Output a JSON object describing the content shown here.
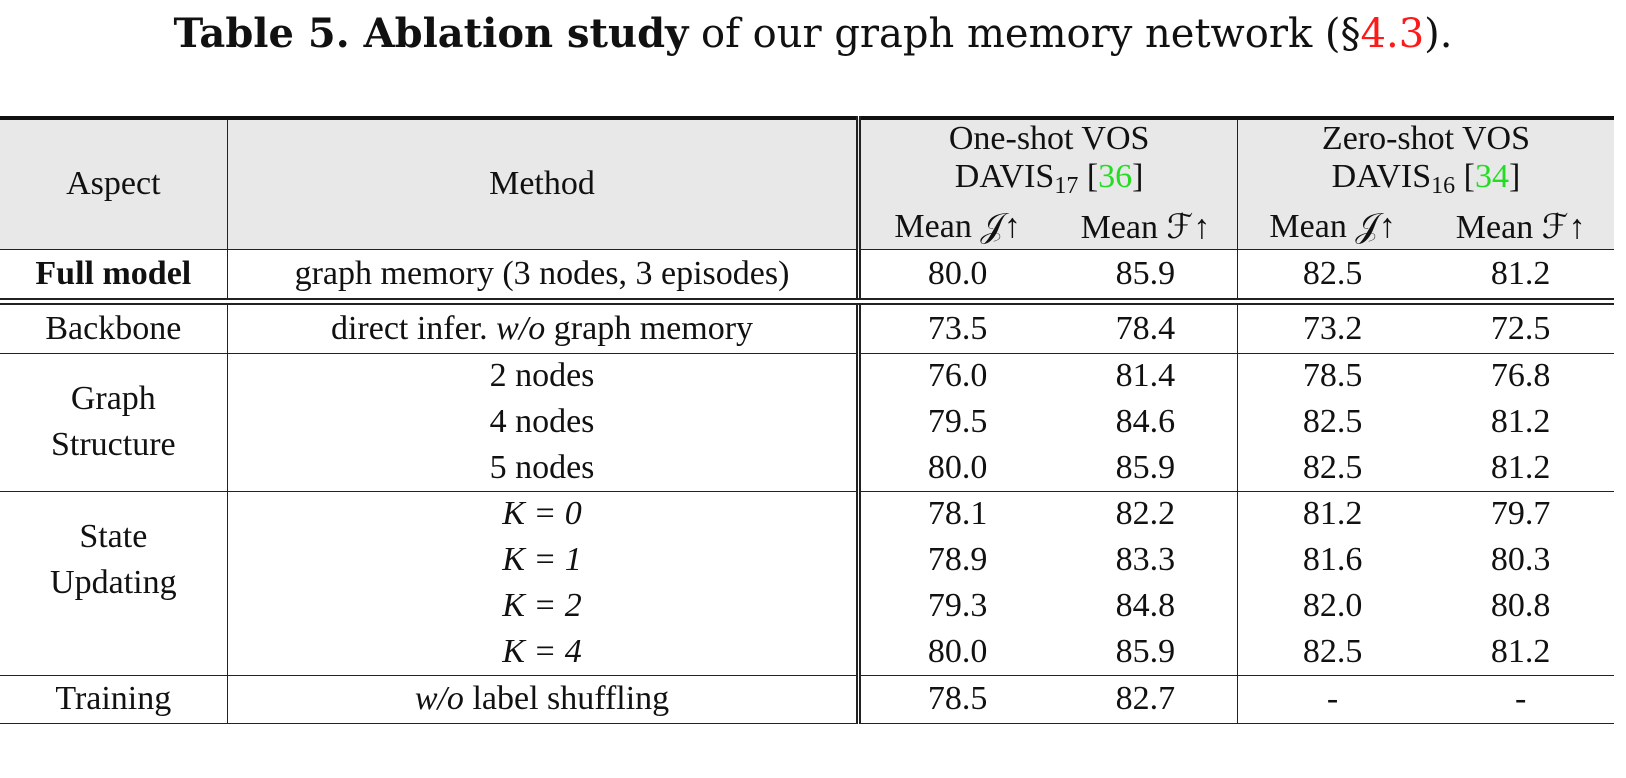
{
  "caption": {
    "bold": "Table 5. Ablation study",
    "text": " of our graph memory network (§",
    "ref": "4.3",
    "end": ")."
  },
  "header": {
    "aspect": "Aspect",
    "method": "Method",
    "group1_line1": "One-shot VOS",
    "group1_dataset": "DAVIS",
    "group1_sub": "17",
    "group1_cite": "36",
    "group2_line1": "Zero-shot VOS",
    "group2_dataset": "DAVIS",
    "group2_sub": "16",
    "group2_cite": "34",
    "mean_j": "Mean 𝒥↑",
    "mean_f": "Mean ℱ↑"
  },
  "full_model": {
    "aspect": "Full model",
    "method": "graph memory (3 nodes, 3 episodes)",
    "values": [
      "80.0",
      "85.9",
      "82.5",
      "81.2"
    ]
  },
  "backbone": {
    "aspect": "Backbone",
    "method_pre": "direct infer. ",
    "method_em": "w/o",
    "method_post": " graph memory",
    "values": [
      "73.5",
      "78.4",
      "73.2",
      "72.5"
    ]
  },
  "graph_structure": {
    "aspect_line1": "Graph",
    "aspect_line2": "Structure",
    "rows": [
      {
        "method": "2 nodes",
        "values": [
          "76.0",
          "81.4",
          "78.5",
          "76.8"
        ]
      },
      {
        "method": "4 nodes",
        "values": [
          "79.5",
          "84.6",
          "82.5",
          "81.2"
        ]
      },
      {
        "method": "5 nodes",
        "values": [
          "80.0",
          "85.9",
          "82.5",
          "81.2"
        ]
      }
    ]
  },
  "state_updating": {
    "aspect_line1": "State",
    "aspect_line2": "Updating",
    "rows": [
      {
        "method": "K = 0",
        "values": [
          "78.1",
          "82.2",
          "81.2",
          "79.7"
        ]
      },
      {
        "method": "K = 1",
        "values": [
          "78.9",
          "83.3",
          "81.6",
          "80.3"
        ]
      },
      {
        "method": "K = 2",
        "values": [
          "79.3",
          "84.8",
          "82.0",
          "80.8"
        ]
      },
      {
        "method": "K = 4",
        "values": [
          "80.0",
          "85.9",
          "82.5",
          "81.2"
        ]
      }
    ]
  },
  "training": {
    "aspect": "Training",
    "method_em": "w/o",
    "method_post": " label shuffling",
    "values": [
      "78.5",
      "82.7",
      "-",
      "-"
    ]
  }
}
